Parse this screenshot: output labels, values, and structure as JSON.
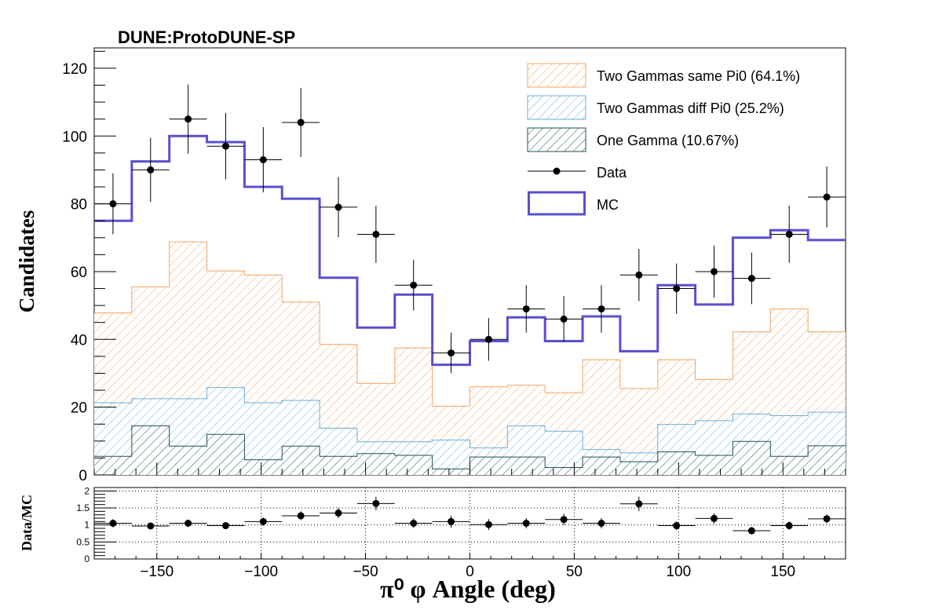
{
  "chart_data": [
    {
      "type": "histogram",
      "title": "DUNE:ProtoDUNE-SP",
      "xlabel": "π⁰  φ Angle (deg)",
      "ylabel": "Candidates",
      "xlim": [
        -180,
        180
      ],
      "ylim": [
        0,
        126
      ],
      "xticks": [
        -150,
        -100,
        -50,
        0,
        50,
        100,
        150
      ],
      "yticks": [
        0,
        20,
        40,
        60,
        80,
        100,
        120
      ],
      "bin_edges": [
        -180,
        -162,
        -144,
        -126,
        -108,
        -90,
        -72,
        -54,
        -36,
        -18,
        0,
        18,
        36,
        54,
        72,
        90,
        108,
        126,
        144,
        162,
        180
      ],
      "legend_position": "top-right",
      "stack": [
        {
          "name": "One Gamma (10.67%)",
          "color": "#1f4f4f",
          "hatch": "diagonal",
          "values": [
            5.5,
            14.5,
            8.5,
            12.0,
            4.5,
            8.5,
            5.5,
            6.3,
            5.8,
            1.8,
            5.3,
            5.3,
            2.2,
            5.3,
            3.9,
            6.8,
            5.8,
            9.9,
            5.5,
            8.6
          ]
        },
        {
          "name": "Two Gammas diff Pi0 (25.2%)",
          "color": "#6aaed6",
          "hatch": "diagonal",
          "cumulative_values": [
            21.3,
            22.5,
            22.5,
            25.8,
            21.3,
            22.0,
            13.8,
            9.8,
            9.8,
            10.3,
            8.0,
            14.5,
            12.9,
            7.5,
            6.5,
            14.9,
            16.0,
            18.0,
            17.5,
            18.5
          ]
        },
        {
          "name": "Two Gammas same Pi0 (64.1%)",
          "color": "#f4a460",
          "hatch": "diagonal",
          "cumulative_values": [
            47.8,
            55.5,
            68.8,
            60.2,
            59.0,
            51.0,
            38.5,
            27.0,
            37.5,
            20.3,
            26.0,
            26.5,
            24.3,
            34.0,
            25.5,
            34.0,
            28.2,
            42.2,
            49.0,
            42.2
          ]
        }
      ],
      "mc": {
        "name": "MC",
        "color": "#5a4fcf",
        "values": [
          75.0,
          92.5,
          100.0,
          98.2,
          85.0,
          81.5,
          58.2,
          43.5,
          53.2,
          32.5,
          39.5,
          46.5,
          39.5,
          46.8,
          36.5,
          56.0,
          50.3,
          70.0,
          72.2,
          69.3
        ]
      },
      "data": {
        "name": "Data",
        "values": [
          80,
          90,
          105,
          97,
          93,
          104,
          79,
          71,
          56,
          36,
          40,
          49,
          46,
          49,
          59,
          55,
          60,
          58,
          71,
          82
        ],
        "errors": [
          9,
          9.5,
          10.2,
          9.8,
          9.6,
          10.2,
          8.9,
          8.4,
          7.5,
          6,
          6.3,
          7,
          6.8,
          7,
          7.7,
          7.4,
          7.7,
          7.6,
          8.4,
          9
        ]
      }
    },
    {
      "type": "ratio",
      "ylabel": "Data/MC",
      "ylim": [
        0,
        2.1
      ],
      "yticks": [
        0,
        0.5,
        1,
        1.5,
        2
      ],
      "grid": true,
      "values": [
        1.05,
        0.97,
        1.05,
        0.98,
        1.1,
        1.27,
        1.35,
        1.63,
        1.05,
        1.1,
        1.01,
        1.05,
        1.16,
        1.05,
        1.62,
        0.98,
        1.19,
        0.83,
        0.98,
        1.18
      ],
      "errors": [
        0.12,
        0.1,
        0.1,
        0.1,
        0.12,
        0.13,
        0.15,
        0.2,
        0.14,
        0.18,
        0.16,
        0.15,
        0.17,
        0.15,
        0.21,
        0.13,
        0.15,
        0.11,
        0.12,
        0.13
      ]
    }
  ]
}
